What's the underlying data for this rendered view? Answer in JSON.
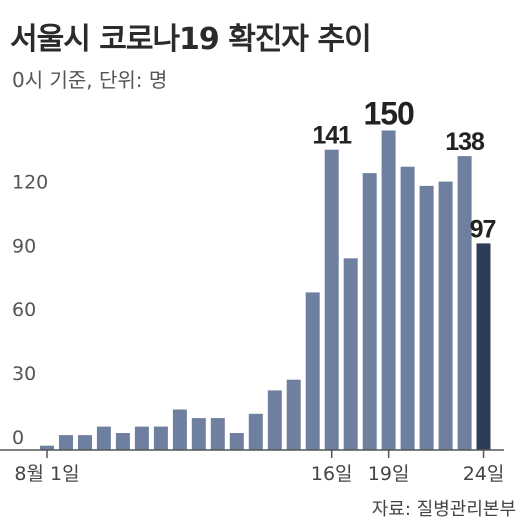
{
  "title": "서울시 코로나19 확진자 추이",
  "subtitle": "0시 기준, 단위: 명",
  "source": "자료: 질병관리본부",
  "chart_data": {
    "type": "bar",
    "title": "서울시 코로나19 확진자 추이",
    "subtitle": "0시 기준, 단위: 명",
    "xlabel": "",
    "ylabel": "",
    "ylim": [
      0,
      150
    ],
    "yticks": [
      0,
      30,
      60,
      90,
      120
    ],
    "grid": false,
    "legend": "none",
    "categories": [
      "8/1",
      "8/2",
      "8/3",
      "8/4",
      "8/5",
      "8/6",
      "8/7",
      "8/8",
      "8/9",
      "8/10",
      "8/11",
      "8/12",
      "8/13",
      "8/14",
      "8/15",
      "8/16",
      "8/17",
      "8/18",
      "8/19",
      "8/20",
      "8/21",
      "8/22",
      "8/23",
      "8/24"
    ],
    "values": [
      2,
      7,
      7,
      11,
      8,
      11,
      11,
      19,
      15,
      15,
      8,
      17,
      28,
      33,
      74,
      141,
      90,
      130,
      150,
      133,
      124,
      126,
      138,
      97
    ],
    "xtick_labels": [
      {
        "index": 0,
        "label": "8월 1일"
      },
      {
        "index": 15,
        "label": "16일"
      },
      {
        "index": 18,
        "label": "19일"
      },
      {
        "index": 23,
        "label": "24일"
      }
    ],
    "data_labels": [
      {
        "index": 15,
        "label": "141"
      },
      {
        "index": 18,
        "label": "150"
      },
      {
        "index": 22,
        "label": "138"
      },
      {
        "index": 23,
        "label": "97"
      }
    ],
    "colors": {
      "bar": "#6f7f9f",
      "highlight": "#2e3d57",
      "axis": "#555555",
      "text": "#333333"
    }
  }
}
